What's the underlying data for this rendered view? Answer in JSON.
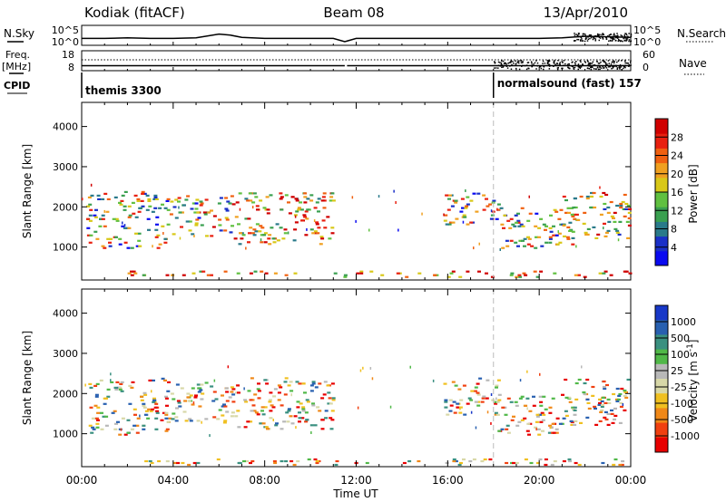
{
  "header": {
    "station": "Kodiak (fitACF)",
    "beam": "Beam 08",
    "date": "13/Apr/2010"
  },
  "chart_data": [
    {
      "type": "line",
      "panel": "noise",
      "ylabel_left": "N.Sky",
      "ylabel_right": "N.Search",
      "right_legend_style": "dotted",
      "ytick_labels": [
        "10^5",
        "10^0"
      ],
      "x_hours": [
        0,
        1,
        2,
        3,
        4,
        5,
        6,
        6.5,
        7,
        8,
        9,
        10,
        11,
        11.5,
        12,
        13,
        14,
        15,
        16,
        17,
        18,
        19,
        20,
        21,
        22,
        23,
        24
      ],
      "n_sky_level": [
        0.3,
        0.3,
        0.35,
        0.3,
        0.3,
        0.35,
        0.7,
        0.6,
        0.4,
        0.3,
        0.3,
        0.3,
        0.3,
        0.0,
        0.3,
        0.3,
        0.3,
        0.3,
        0.3,
        0.3,
        0.3,
        0.3,
        0.3,
        0.35,
        0.5,
        0.45,
        0.4
      ],
      "n_search_scatter_range_hours": [
        21.5,
        24
      ]
    },
    {
      "type": "line",
      "panel": "frequency",
      "ylabel_left": "Freq.",
      "ylabel_left_unit": "[MHz]",
      "ylabel_right": "Nave",
      "right_legend_style": "dotted",
      "ytick_left": [
        "18",
        "8"
      ],
      "ytick_right": [
        "60",
        "0"
      ],
      "freq_mhz": 10.5,
      "nave_scatter_range_hours": [
        18,
        24
      ]
    },
    {
      "type": "table",
      "panel": "cpid",
      "label": "CPID",
      "segments": [
        {
          "name": "themis 3300",
          "start": 0,
          "end": 18
        },
        {
          "name": "normalsound (fast) 157",
          "start": 18,
          "end": 24
        }
      ]
    },
    {
      "type": "heatmap",
      "panel": "power",
      "ylabel": "Slant Range [km]",
      "ylim": [
        180,
        4600
      ],
      "yticks": [
        1000,
        2000,
        3000,
        4000
      ],
      "xlim": [
        0,
        24
      ],
      "colorbar": {
        "label": "Power [dB]",
        "ticks": [
          "4",
          "8",
          "12",
          "16",
          "20",
          "24",
          "28"
        ],
        "colors": [
          "#0a0af0",
          "#1a30c8",
          "#2a7a8a",
          "#3aa050",
          "#60c040",
          "#d8c818",
          "#f0a020",
          "#f06010",
          "#e82010",
          "#d00000"
        ]
      },
      "scatter_clusters": [
        {
          "t": [
            0.2,
            3.8
          ],
          "r": [
            1000,
            2400
          ],
          "level": 0.55
        },
        {
          "t": [
            3.8,
            6.5
          ],
          "r": [
            1300,
            2300
          ],
          "level": 0.5
        },
        {
          "t": [
            6.5,
            11.0
          ],
          "r": [
            1100,
            2400
          ],
          "level": 0.35
        },
        {
          "t": [
            2.0,
            24.0
          ],
          "r": [
            280,
            420
          ],
          "level": 0.25
        },
        {
          "t": [
            15.8,
            18.2
          ],
          "r": [
            1500,
            2400
          ],
          "level": 0.55
        },
        {
          "t": [
            18.0,
            21.5
          ],
          "r": [
            1000,
            2000
          ],
          "level": 0.55
        },
        {
          "t": [
            21.0,
            23.9
          ],
          "r": [
            1200,
            2400
          ],
          "level": 0.4
        }
      ]
    },
    {
      "type": "heatmap",
      "panel": "velocity",
      "ylabel": "Slant Range [km]",
      "ylim": [
        180,
        4600
      ],
      "yticks": [
        1000,
        2000,
        3000,
        4000
      ],
      "xlim": [
        0,
        24
      ],
      "xticks": [
        "00:00",
        "04:00",
        "08:00",
        "12:00",
        "16:00",
        "20:00",
        "00:00"
      ],
      "xlabel": "Time UT",
      "colorbar": {
        "label": "Velocity [m s",
        "label_sup": "-1",
        "label_end": "]",
        "ticks": [
          "1000",
          "500",
          "100",
          "25",
          "-25",
          "-100",
          "-500",
          "-1000"
        ],
        "colors": [
          "#1838c8",
          "#2860b0",
          "#3a9080",
          "#50b848",
          "#b8b8b8",
          "#d8d8a8",
          "#f0c020",
          "#f08818",
          "#f04010",
          "#e80000"
        ]
      },
      "scatter_clusters": [
        {
          "t": [
            0.2,
            3.8
          ],
          "r": [
            1000,
            2400
          ],
          "level": 0.55
        },
        {
          "t": [
            3.8,
            6.5
          ],
          "r": [
            1300,
            2300
          ],
          "level": 0.55
        },
        {
          "t": [
            6.5,
            11.0
          ],
          "r": [
            1100,
            2400
          ],
          "level": 0.6
        },
        {
          "t": [
            2.0,
            24.0
          ],
          "r": [
            250,
            400
          ],
          "level": 0.6
        },
        {
          "t": [
            15.8,
            18.2
          ],
          "r": [
            1500,
            2400
          ],
          "level": 0.55
        },
        {
          "t": [
            18.0,
            21.5
          ],
          "r": [
            1000,
            2000
          ],
          "level": 0.6
        },
        {
          "t": [
            21.0,
            23.9
          ],
          "r": [
            1200,
            2400
          ],
          "level": 0.55
        }
      ]
    }
  ]
}
